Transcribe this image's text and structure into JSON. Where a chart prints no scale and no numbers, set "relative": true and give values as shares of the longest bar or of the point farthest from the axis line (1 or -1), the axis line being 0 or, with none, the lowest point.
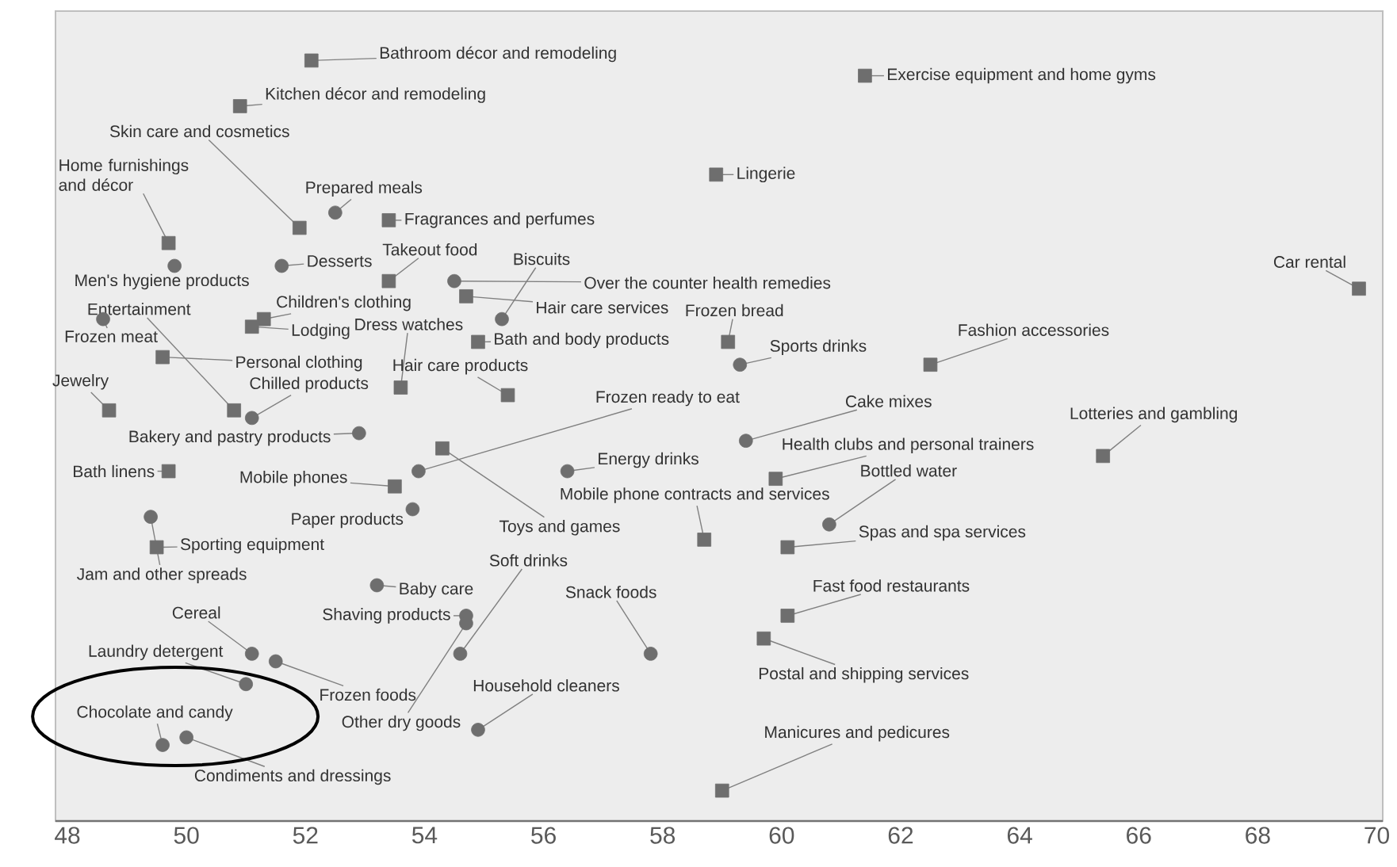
{
  "chart_data": {
    "type": "scatter",
    "relative": true,
    "xlim": [
      47.8,
      70.1
    ],
    "xticks": [
      48,
      50,
      52,
      54,
      56,
      58,
      60,
      62,
      64,
      66,
      68,
      70
    ],
    "tick_labels": "x",
    "grid": false,
    "series": [
      {
        "color": "#6e6e6e",
        "marker": "square",
        "x": [
          52.1,
          50.9,
          61.4,
          58.9,
          51.9,
          53.4,
          49.7,
          53.4,
          69.7,
          54.7,
          51.3,
          51.1,
          53.6,
          59.1,
          54.9,
          55.4,
          49.6,
          50.8,
          48.7,
          62.5,
          54.3,
          65.4,
          49.7,
          53.5,
          59.9,
          58.7,
          60.1,
          49.5,
          60.1,
          59.7,
          59.0
        ],
        "values": [
          1.0,
          0.94,
          0.98,
          0.85,
          0.78,
          0.79,
          0.76,
          0.71,
          0.7,
          0.69,
          0.66,
          0.65,
          0.57,
          0.63,
          0.63,
          0.56,
          0.61,
          0.54,
          0.54,
          0.6,
          0.49,
          0.48,
          0.46,
          0.44,
          0.45,
          0.37,
          0.36,
          0.36,
          0.27,
          0.24,
          0.04
        ]
      },
      {
        "color": "#6e6e6e",
        "marker": "circle",
        "x": [
          52.5,
          49.8,
          51.6,
          54.5,
          55.3,
          48.6,
          59.3,
          51.1,
          52.9,
          59.4,
          53.9,
          56.4,
          60.8,
          53.8,
          49.4,
          53.2,
          54.7,
          54.7,
          54.6,
          57.8,
          51.1,
          51.5,
          51.0,
          54.9,
          49.6,
          50.0
        ],
        "values": [
          0.8,
          0.73,
          0.73,
          0.71,
          0.66,
          0.66,
          0.6,
          0.53,
          0.51,
          0.5,
          0.46,
          0.46,
          0.39,
          0.41,
          0.4,
          0.31,
          0.27,
          0.26,
          0.22,
          0.22,
          0.22,
          0.21,
          0.18,
          0.12,
          0.1,
          0.11
        ]
      }
    ],
    "annotations": [
      {
        "text": "Bathroom décor and remodeling",
        "x": 52.1,
        "y": 1.0
      },
      {
        "text": "Kitchen décor and remodeling",
        "x": 50.9,
        "y": 0.94
      },
      {
        "text": "Exercise equipment and home gyms",
        "x": 61.4,
        "y": 0.98
      },
      {
        "text": "Lingerie",
        "x": 58.9,
        "y": 0.85
      },
      {
        "text": "Skin care and cosmetics",
        "x": 51.9,
        "y": 0.78
      },
      {
        "text": "Fragrances and perfumes",
        "x": 53.4,
        "y": 0.79
      },
      {
        "text": "Home furnishings and décor",
        "x": 49.7,
        "y": 0.76
      },
      {
        "text": "Takeout food",
        "x": 53.4,
        "y": 0.71
      },
      {
        "text": "Car rental",
        "x": 69.7,
        "y": 0.7
      },
      {
        "text": "Hair care services",
        "x": 54.7,
        "y": 0.69
      },
      {
        "text": "Children's clothing",
        "x": 51.3,
        "y": 0.66
      },
      {
        "text": "Lodging",
        "x": 51.1,
        "y": 0.65
      },
      {
        "text": "Dress watches",
        "x": 53.6,
        "y": 0.57
      },
      {
        "text": "Frozen bread",
        "x": 59.1,
        "y": 0.63
      },
      {
        "text": "Bath and body products",
        "x": 54.9,
        "y": 0.63
      },
      {
        "text": "Hair care products",
        "x": 55.4,
        "y": 0.56
      },
      {
        "text": "Personal clothing",
        "x": 49.6,
        "y": 0.61
      },
      {
        "text": "Entertainment",
        "x": 50.8,
        "y": 0.54
      },
      {
        "text": "Jewelry",
        "x": 48.7,
        "y": 0.54
      },
      {
        "text": "Fashion accessories",
        "x": 62.5,
        "y": 0.6
      },
      {
        "text": "Toys and games",
        "x": 54.3,
        "y": 0.49
      },
      {
        "text": "Lotteries and gambling",
        "x": 65.4,
        "y": 0.48
      },
      {
        "text": "Bath linens",
        "x": 49.7,
        "y": 0.46
      },
      {
        "text": "Mobile phones",
        "x": 53.5,
        "y": 0.44
      },
      {
        "text": "Health clubs and personal trainers",
        "x": 59.9,
        "y": 0.45
      },
      {
        "text": "Mobile phone contracts and services",
        "x": 58.7,
        "y": 0.37
      },
      {
        "text": "Spas and spa services",
        "x": 60.1,
        "y": 0.36
      },
      {
        "text": "Sporting equipment",
        "x": 49.5,
        "y": 0.36
      },
      {
        "text": "Fast food restaurants",
        "x": 60.1,
        "y": 0.27
      },
      {
        "text": "Postal and shipping services",
        "x": 59.7,
        "y": 0.24
      },
      {
        "text": "Manicures and pedicures",
        "x": 59.0,
        "y": 0.04
      },
      {
        "text": "Prepared meals",
        "x": 52.5,
        "y": 0.8
      },
      {
        "text": "Men's hygiene products",
        "x": 49.8,
        "y": 0.73
      },
      {
        "text": "Desserts",
        "x": 51.6,
        "y": 0.73
      },
      {
        "text": "Over the counter health remedies",
        "x": 54.5,
        "y": 0.71
      },
      {
        "text": "Biscuits",
        "x": 55.3,
        "y": 0.66
      },
      {
        "text": "Frozen meat",
        "x": 48.6,
        "y": 0.66
      },
      {
        "text": "Sports drinks",
        "x": 59.3,
        "y": 0.6
      },
      {
        "text": "Chilled products",
        "x": 51.1,
        "y": 0.53
      },
      {
        "text": "Bakery and pastry products",
        "x": 52.9,
        "y": 0.51
      },
      {
        "text": "Cake mixes",
        "x": 59.4,
        "y": 0.5
      },
      {
        "text": "Frozen ready to eat",
        "x": 53.9,
        "y": 0.46
      },
      {
        "text": "Energy drinks",
        "x": 56.4,
        "y": 0.46
      },
      {
        "text": "Bottled water",
        "x": 60.8,
        "y": 0.39
      },
      {
        "text": "Paper products",
        "x": 53.8,
        "y": 0.41
      },
      {
        "text": "Jam and other spreads",
        "x": 49.4,
        "y": 0.4
      },
      {
        "text": "Baby care",
        "x": 53.2,
        "y": 0.31
      },
      {
        "text": "Shaving products",
        "x": 54.7,
        "y": 0.27
      },
      {
        "text": "Other dry goods",
        "x": 54.7,
        "y": 0.26
      },
      {
        "text": "Soft drinks",
        "x": 54.6,
        "y": 0.22
      },
      {
        "text": "Snack foods",
        "x": 57.8,
        "y": 0.22
      },
      {
        "text": "Cereal",
        "x": 51.1,
        "y": 0.22
      },
      {
        "text": "Frozen foods",
        "x": 51.5,
        "y": 0.21
      },
      {
        "text": "Laundry detergent",
        "x": 51.0,
        "y": 0.18
      },
      {
        "text": "Household cleaners",
        "x": 54.9,
        "y": 0.12
      },
      {
        "text": "Chocolate and candy",
        "x": 49.6,
        "y": 0.1
      },
      {
        "text": "Condiments and dressings",
        "x": 50.0,
        "y": 0.11
      }
    ]
  }
}
